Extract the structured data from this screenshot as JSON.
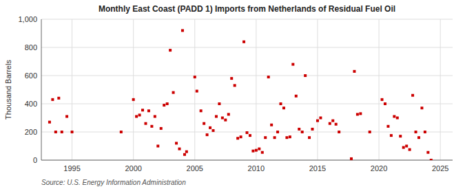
{
  "chart_data": {
    "type": "scatter",
    "title": "Monthly East Coast (PADD 1) Imports from Netherlands of Residual Fuel Oil",
    "ylabel": "Thousand Barrels",
    "annotations": [
      "Source: U.S. Energy Information Administration"
    ],
    "color": "#cc0000",
    "marker": "square",
    "grid": true,
    "xlim": [
      1992.5,
      2026.0
    ],
    "ylim": [
      0,
      1000
    ],
    "xticks": [
      1995,
      2000,
      2005,
      2010,
      2015,
      2020,
      2025
    ],
    "yticks": [
      0,
      200,
      400,
      600,
      800,
      {
        "value": 1000,
        "label": "1,000"
      }
    ],
    "x": [
      1993.17,
      1993.42,
      1993.67,
      1993.92,
      1994.17,
      1994.58,
      1995.0,
      1999.0,
      2000.0,
      2000.25,
      2000.5,
      2000.75,
      2001.0,
      2001.25,
      2001.5,
      2001.75,
      2002.0,
      2002.25,
      2002.5,
      2002.75,
      2003.0,
      2003.25,
      2003.5,
      2003.75,
      2004.0,
      2004.17,
      2004.33,
      2005.0,
      2005.17,
      2005.5,
      2005.75,
      2006.0,
      2006.25,
      2006.5,
      2006.75,
      2007.0,
      2007.25,
      2007.5,
      2007.75,
      2008.0,
      2008.25,
      2008.5,
      2008.75,
      2009.0,
      2009.25,
      2009.5,
      2009.75,
      2010.0,
      2010.25,
      2010.5,
      2010.75,
      2011.0,
      2011.25,
      2011.5,
      2011.75,
      2012.0,
      2012.25,
      2012.5,
      2012.75,
      2013.0,
      2013.25,
      2013.5,
      2013.75,
      2014.0,
      2014.33,
      2014.58,
      2015.0,
      2015.25,
      2016.0,
      2016.25,
      2016.5,
      2016.75,
      2017.75,
      2018.0,
      2018.25,
      2018.5,
      2019.25,
      2020.25,
      2020.5,
      2020.75,
      2021.0,
      2021.25,
      2021.5,
      2021.75,
      2022.0,
      2022.25,
      2022.5,
      2022.75,
      2023.0,
      2023.25,
      2023.5,
      2023.75,
      2024.0,
      2024.25
    ],
    "values": [
      270,
      430,
      200,
      440,
      200,
      310,
      200,
      200,
      430,
      310,
      320,
      355,
      260,
      350,
      240,
      310,
      100,
      225,
      390,
      400,
      780,
      480,
      120,
      80,
      920,
      40,
      60,
      590,
      490,
      350,
      260,
      180,
      230,
      210,
      310,
      400,
      300,
      285,
      325,
      580,
      530,
      155,
      165,
      840,
      195,
      175,
      65,
      70,
      80,
      55,
      160,
      590,
      250,
      160,
      200,
      400,
      370,
      160,
      165,
      680,
      455,
      220,
      200,
      600,
      160,
      220,
      280,
      300,
      260,
      280,
      255,
      200,
      10,
      630,
      325,
      330,
      200,
      430,
      400,
      240,
      175,
      310,
      300,
      170,
      90,
      100,
      75,
      460,
      200,
      160,
      370,
      200,
      55,
      0
    ]
  }
}
